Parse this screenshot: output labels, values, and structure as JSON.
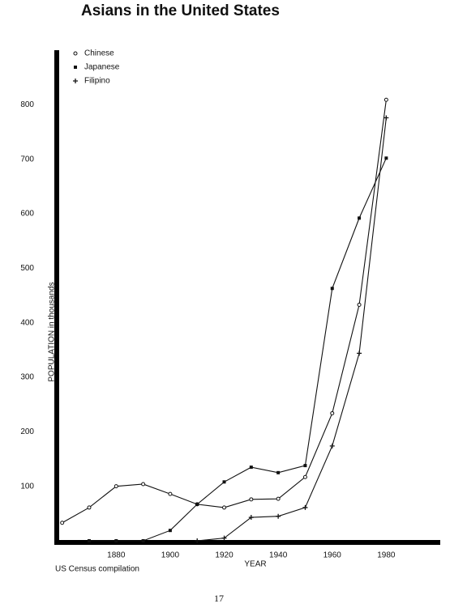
{
  "chart_data": {
    "type": "line",
    "title": "Asians in the United States",
    "x_label": "YEAR",
    "y_label": "POPULATION in thousands",
    "source": "US Census compilation",
    "page_number": "17",
    "x": [
      1860,
      1870,
      1880,
      1890,
      1900,
      1910,
      1920,
      1930,
      1940,
      1950,
      1960,
      1970,
      1980
    ],
    "series": [
      {
        "name": "Chinese",
        "color": "#111111",
        "marker": "circle",
        "values": [
          33,
          61,
          100,
          104,
          86,
          67,
          61,
          76,
          77,
          117,
          234,
          433,
          809
        ]
      },
      {
        "name": "Japanese",
        "color": "#111111",
        "marker": "square",
        "values": [
          null,
          0,
          0,
          0,
          19,
          67,
          108,
          135,
          125,
          138,
          463,
          592,
          702
        ]
      },
      {
        "name": "Filipino",
        "color": "#111111",
        "marker": "plus",
        "values": [
          null,
          null,
          null,
          null,
          null,
          0,
          5,
          43,
          45,
          61,
          174,
          344,
          776
        ]
      }
    ],
    "xlim": [
      1858,
      2000
    ],
    "xticks": [
      1880,
      1900,
      1920,
      1940,
      1960,
      1980
    ],
    "ylim": [
      0,
      900
    ],
    "yticks": [
      100,
      200,
      300,
      400,
      500,
      600,
      700,
      800
    ],
    "legend": "top-left"
  }
}
